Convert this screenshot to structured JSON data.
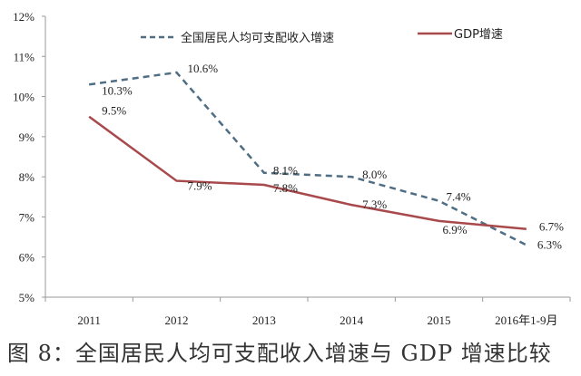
{
  "chart_data": {
    "type": "line",
    "title": "",
    "caption": "图 8：全国居民人均可支配收入增速与 GDP 增速比较",
    "xlabel": "",
    "ylabel": "",
    "categories": [
      "2011",
      "2012",
      "2013",
      "2014",
      "2015",
      "2016年1-9月"
    ],
    "ylim": [
      5,
      12
    ],
    "yticks": [
      "5%",
      "6%",
      "7%",
      "8%",
      "9%",
      "10%",
      "11%",
      "12%"
    ],
    "grid": false,
    "legend_position": "top",
    "series": [
      {
        "name": "全国居民人均可支配收入增速",
        "values": [
          10.3,
          10.6,
          8.1,
          8.0,
          7.4,
          6.3
        ],
        "labels": [
          "10.3%",
          "10.6%",
          "8.1%",
          "8.0%",
          "7.4%",
          "6.3%"
        ],
        "color": "#4f6e84",
        "style": "dashed"
      },
      {
        "name": "GDP增速",
        "values": [
          9.5,
          7.9,
          7.8,
          7.3,
          6.9,
          6.7
        ],
        "labels": [
          "9.5%",
          "7.9%",
          "7.8%",
          "7.3%",
          "6.9%",
          "6.7%"
        ],
        "color": "#a8494c",
        "style": "solid"
      }
    ]
  }
}
